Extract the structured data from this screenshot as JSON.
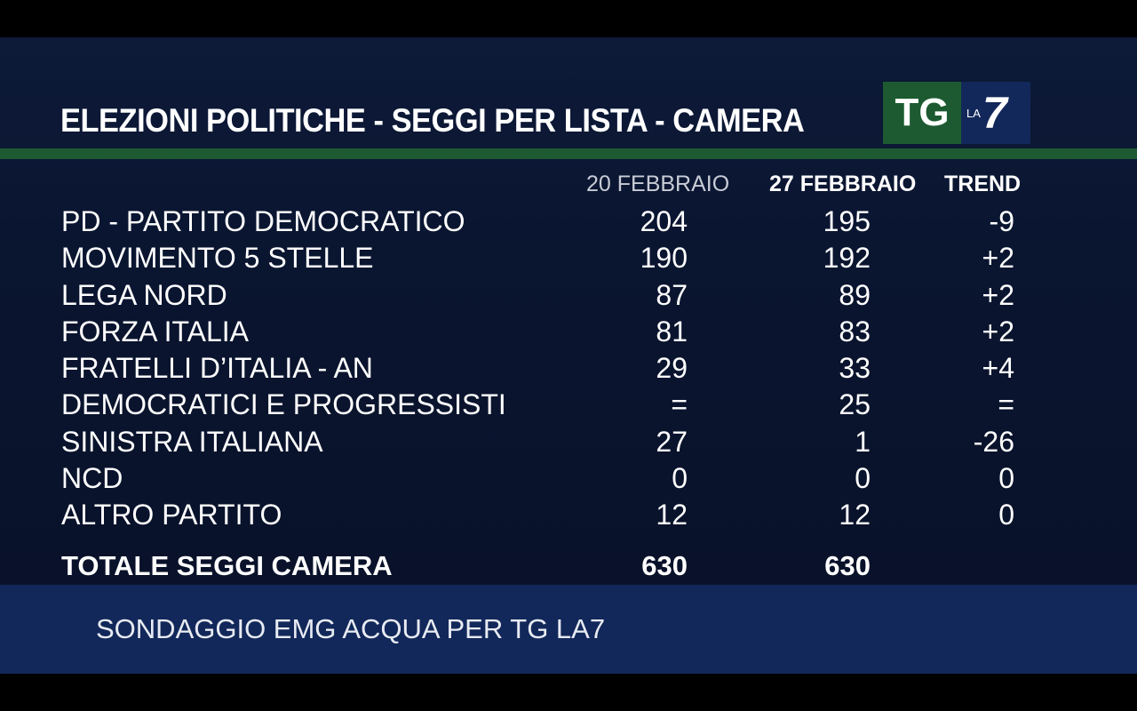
{
  "chart_data": {
    "type": "table",
    "title": "ELEZIONI POLITICHE - SEGGI  PER  LISTA - CAMERA",
    "columns": [
      "20 FEBBRAIO",
      "27 FEBBRAIO",
      "TREND"
    ],
    "rows": [
      {
        "name": "PD - PARTITO DEMOCRATICO",
        "v1": "204",
        "v2": "195",
        "trend": "-9"
      },
      {
        "name": "MOVIMENTO 5 STELLE",
        "v1": "190",
        "v2": "192",
        "trend": "+2"
      },
      {
        "name": "LEGA NORD",
        "v1": "87",
        "v2": "89",
        "trend": "+2"
      },
      {
        "name": "FORZA ITALIA",
        "v1": "81",
        "v2": "83",
        "trend": "+2"
      },
      {
        "name": "FRATELLI D’ITALIA - AN",
        "v1": "29",
        "v2": "33",
        "trend": "+4"
      },
      {
        "name": "DEMOCRATICI E PROGRESSISTI",
        "v1": "=",
        "v2": "25",
        "trend": "="
      },
      {
        "name": "SINISTRA ITALIANA",
        "v1": "27",
        "v2": "1",
        "trend": "-26"
      },
      {
        "name": "NCD",
        "v1": "0",
        "v2": "0",
        "trend": "0"
      },
      {
        "name": "ALTRO PARTITO",
        "v1": "12",
        "v2": "12",
        "trend": "0"
      }
    ],
    "total": {
      "label": "TOTALE SEGGI CAMERA",
      "v1": "630",
      "v2": "630"
    },
    "source": "SONDAGGIO EMG ACQUA PER TG LA7"
  },
  "logo": {
    "tg": "TG",
    "la": "LA",
    "seven": "7"
  },
  "colors": {
    "background": "#0b1733",
    "accent_green": "#1d5a31",
    "source_bar": "#12285a",
    "text": "#ffffff"
  }
}
